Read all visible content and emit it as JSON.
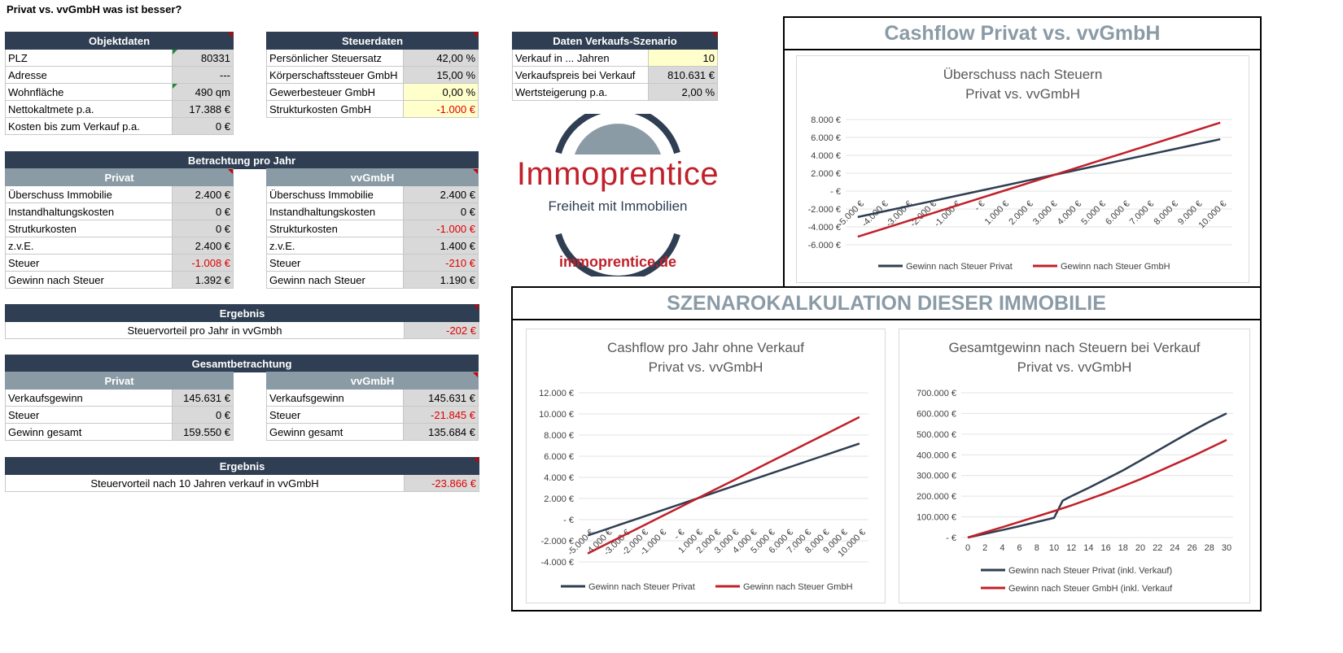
{
  "page_title": "Privat vs. vvGmbH was ist besser?",
  "objektdaten": {
    "header": "Objektdaten",
    "rows": [
      {
        "label": "PLZ",
        "value": "80331"
      },
      {
        "label": "Adresse",
        "value": "---"
      },
      {
        "label": "Wohnfläche",
        "value": "490 qm"
      },
      {
        "label": "Nettokaltmete p.a.",
        "value": "17.388 €"
      },
      {
        "label": "Kosten bis zum Verkauf p.a.",
        "value": "0 €"
      }
    ]
  },
  "steuerdaten": {
    "header": "Steuerdaten",
    "rows": [
      {
        "label": "Persönlicher Steuersatz",
        "value": "42,00 %"
      },
      {
        "label": "Körperschaftssteuer GmbH",
        "value": "15,00 %"
      },
      {
        "label": "Gewerbesteuer GmbH",
        "value": "0,00 %"
      },
      {
        "label": "Strukturkosten GmbH",
        "value": "-1.000 €"
      }
    ]
  },
  "verkauf": {
    "header": "Daten Verkaufs-Szenario",
    "rows": [
      {
        "label": "Verkauf in ... Jahren",
        "value": "10"
      },
      {
        "label": "Verkaufspreis bei Verkauf",
        "value": "810.631 €"
      },
      {
        "label": "Wertsteigerung p.a.",
        "value": "2,00 %"
      }
    ]
  },
  "pro_jahr": {
    "header": "Betrachtung pro Jahr",
    "privat_header": "Privat",
    "gmbh_header": "vvGmbH",
    "privat_rows": [
      {
        "label": "Überschuss Immobilie",
        "value": "2.400 €"
      },
      {
        "label": "Instandhaltungskosten",
        "value": "0 €"
      },
      {
        "label": "Strutkurkosten",
        "value": "0 €"
      },
      {
        "label": "z.v.E.",
        "value": "2.400 €"
      },
      {
        "label": "Steuer",
        "value": "-1.008 €"
      },
      {
        "label": "Gewinn nach Steuer",
        "value": "1.392 €"
      }
    ],
    "gmbh_rows": [
      {
        "label": "Überschuss Immobilie",
        "value": "2.400 €"
      },
      {
        "label": "Instandhaltungskosten",
        "value": "0 €"
      },
      {
        "label": "Strukturkosten",
        "value": "-1.000 €"
      },
      {
        "label": "z.v.E.",
        "value": "1.400 €"
      },
      {
        "label": "Steuer",
        "value": "-210 €"
      },
      {
        "label": "Gewinn nach Steuer",
        "value": "1.190 €"
      }
    ]
  },
  "ergebnis1": {
    "header": "Ergebnis",
    "label": "Steuervorteil pro Jahr in vvGmbh",
    "value": "-202 €"
  },
  "gesamt": {
    "header": "Gesamtbetrachtung",
    "privat_header": "Privat",
    "gmbh_header": "vvGmbH",
    "privat_rows": [
      {
        "label": "Verkaufsgewinn",
        "value": "145.631 €"
      },
      {
        "label": "Steuer",
        "value": "0 €"
      },
      {
        "label": "Gewinn gesamt",
        "value": "159.550 €"
      }
    ],
    "gmbh_rows": [
      {
        "label": "Verkaufsgewinn",
        "value": "145.631 €"
      },
      {
        "label": "Steuer",
        "value": "-21.845 €"
      },
      {
        "label": "Gewinn gesamt",
        "value": "135.684 €"
      }
    ]
  },
  "ergebnis2": {
    "header": "Ergebnis",
    "label": "Steuervorteil nach 10 Jahren verkauf in vvGmbH",
    "value": "-23.866 €"
  },
  "logo": {
    "brand": "Immoprentice",
    "tagline": "Freiheit mit Immobilien",
    "url": "immoprentice.de"
  },
  "cashflow_box": {
    "title": "Cashflow Privat vs. vvGmbH"
  },
  "szenario_box": {
    "title": "SZENAROKALKULATION DIESER IMMOBILIE"
  },
  "colors": {
    "privat": "#2f3e52",
    "gmbh": "#c0202a",
    "header": "#2f3e52",
    "subheader": "#8a9ba6",
    "brand_red": "#c0202a"
  },
  "chart_data": [
    {
      "type": "line",
      "title": "Überschuss nach Steuern",
      "subtitle": "Privat vs. vvGmbH",
      "categories": [
        "-5.000 €",
        "-4.000 €",
        "-3.000 €",
        "-2.000 €",
        "-1.000 €",
        "- €",
        "1.000 €",
        "2.000 €",
        "3.000 €",
        "4.000 €",
        "5.000 €",
        "6.000 €",
        "7.000 €",
        "8.000 €",
        "9.000 €",
        "10.000 €"
      ],
      "yticks": [
        "8.000 €",
        "6.000 €",
        "4.000 €",
        "2.000 €",
        "- €",
        "-2.000 €",
        "-4.000 €",
        "-6.000 €"
      ],
      "ylim": [
        -6000,
        8000
      ],
      "series": [
        {
          "name": "Gewinn nach Steuer Privat",
          "values": [
            -2900,
            -2320,
            -1740,
            -1160,
            -580,
            0,
            580,
            1160,
            1740,
            2320,
            2900,
            3480,
            4060,
            4640,
            5220,
            5800
          ]
        },
        {
          "name": "Gewinn nach Steuer GmbH",
          "values": [
            -5100,
            -4250,
            -3400,
            -2550,
            -1700,
            -850,
            0,
            850,
            1700,
            2550,
            3400,
            4250,
            5100,
            5950,
            6800,
            7650
          ]
        }
      ]
    },
    {
      "type": "line",
      "title": "Cashflow pro Jahr ohne Verkauf",
      "subtitle": "Privat vs. vvGmbH",
      "categories": [
        "-5.000 €",
        "-4.000 €",
        "-3.000 €",
        "-2.000 €",
        "-1.000 €",
        "- €",
        "1.000 €",
        "2.000 €",
        "3.000 €",
        "4.000 €",
        "5.000 €",
        "6.000 €",
        "7.000 €",
        "8.000 €",
        "9.000 €",
        "10.000 €"
      ],
      "yticks": [
        "12.000 €",
        "10.000 €",
        "8.000 €",
        "6.000 €",
        "4.000 €",
        "2.000 €",
        "- €",
        "-2.000 €",
        "-4.000 €"
      ],
      "ylim": [
        -4000,
        12000
      ],
      "series": [
        {
          "name": "Gewinn nach Steuer Privat",
          "values": [
            -1500,
            -920,
            -340,
            240,
            820,
            1400,
            1980,
            2560,
            3140,
            3720,
            4300,
            4880,
            5460,
            6040,
            6620,
            7200
          ]
        },
        {
          "name": "Gewinn nach Steuer GmbH",
          "values": [
            -3200,
            -2340,
            -1480,
            -620,
            240,
            1100,
            1960,
            2820,
            3680,
            4540,
            5400,
            6260,
            7120,
            7980,
            8840,
            9700
          ]
        }
      ]
    },
    {
      "type": "line",
      "title": "Gesamtgewinn nach Steuern bei Verkauf",
      "subtitle": "Privat vs. vvGmbH",
      "categories": [
        "0",
        "2",
        "4",
        "6",
        "8",
        "10",
        "12",
        "14",
        "16",
        "18",
        "20",
        "22",
        "24",
        "26",
        "28",
        "30"
      ],
      "yticks": [
        "700.000 €",
        "600.000 €",
        "500.000 €",
        "400.000 €",
        "300.000 €",
        "200.000 €",
        "100.000 €",
        "- €"
      ],
      "ylim": [
        0,
        700000
      ],
      "series": [
        {
          "name": "Gewinn nach Steuer Privat (inkl. Verkauf)",
          "x": [
            0,
            2,
            4,
            6,
            8,
            10,
            11,
            12,
            14,
            16,
            18,
            20,
            22,
            24,
            26,
            28,
            30
          ],
          "values": [
            0,
            18000,
            36000,
            55000,
            75000,
            95000,
            178000,
            200000,
            240000,
            282000,
            325000,
            372000,
            420000,
            468000,
            515000,
            560000,
            600000
          ]
        },
        {
          "name": "Gewinn nach Steuer GmbH (inkl. Verkauf",
          "x": [
            0,
            2,
            4,
            6,
            8,
            10,
            12,
            14,
            16,
            18,
            20,
            22,
            24,
            26,
            28,
            30
          ],
          "values": [
            0,
            25000,
            50000,
            76000,
            102000,
            128000,
            155000,
            185000,
            215000,
            248000,
            282000,
            318000,
            355000,
            392000,
            432000,
            472000
          ]
        }
      ]
    }
  ]
}
